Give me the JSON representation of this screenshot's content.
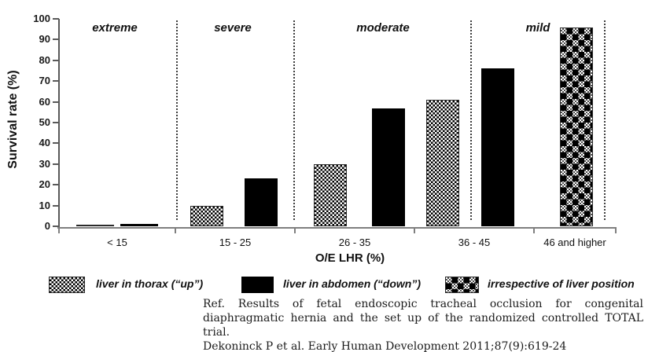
{
  "chart_data": {
    "type": "bar",
    "title": "",
    "ylabel": "Survival rate (%)",
    "xlabel": "O/E LHR (%)",
    "ylim": [
      0,
      100
    ],
    "ytick_step": 10,
    "grid": false,
    "legend_position": "bottom",
    "categories": [
      "< 15",
      "15 - 25",
      "26 - 35",
      "36 - 45",
      "46 and higher"
    ],
    "series": [
      {
        "name": "liver in thorax (“up”)",
        "style": "checker",
        "values": [
          0.5,
          10,
          30,
          61,
          null
        ]
      },
      {
        "name": "liver in abdomen (“down”)",
        "style": "black",
        "values": [
          1,
          23,
          57,
          76,
          null
        ]
      },
      {
        "name": "irrespective of liver position",
        "style": "plaid",
        "values": [
          null,
          null,
          null,
          null,
          96
        ]
      }
    ],
    "severity_zones": [
      "extreme",
      "severe",
      "moderate",
      "mild"
    ]
  },
  "legend": {
    "items": [
      {
        "label": "liver in thorax (“up”)",
        "swatch": "checker"
      },
      {
        "label": "liver in abdomen (“down”)",
        "swatch": "black"
      },
      {
        "label": "irrespective of liver position",
        "swatch": "plaid"
      }
    ]
  },
  "reference": {
    "line1": "Ref. Results of fetal endoscopic tracheal occlusion for congenital diaphragmatic hernia and the set up of the randomized controlled TOTAL trial.",
    "line2": "Dekoninck P et al. Early Human Development 2011;87(9):619-24"
  },
  "colors": {
    "bar_black": "#000000",
    "axis_gray": "#7f7f7f",
    "separator": "#3d3d3d",
    "text": "#111111"
  }
}
